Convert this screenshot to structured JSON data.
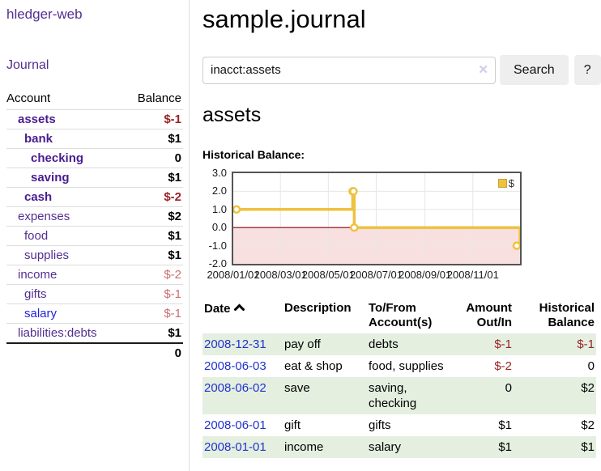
{
  "sidebar": {
    "app_title": "hledger-web",
    "journal_link": "Journal",
    "accounts_table": {
      "account_header": "Account",
      "balance_header": "Balance",
      "rows": [
        {
          "name": "assets",
          "depth": 1,
          "balance": "$-1",
          "matched": true
        },
        {
          "name": "bank",
          "depth": 2,
          "balance": "$1",
          "matched": true
        },
        {
          "name": "checking",
          "depth": 3,
          "balance": "0",
          "matched": true
        },
        {
          "name": "saving",
          "depth": 3,
          "balance": "$1",
          "matched": true
        },
        {
          "name": "cash",
          "depth": 2,
          "balance": "$-2",
          "matched": true
        },
        {
          "name": "expenses",
          "depth": 1,
          "balance": "$2",
          "matched": false
        },
        {
          "name": "food",
          "depth": 2,
          "balance": "$1",
          "matched": false
        },
        {
          "name": "supplies",
          "depth": 2,
          "balance": "$1",
          "matched": false
        },
        {
          "name": "income",
          "depth": 1,
          "balance": "$-2",
          "matched": false
        },
        {
          "name": "gifts",
          "depth": 2,
          "balance": "$-1",
          "matched": false
        },
        {
          "name": "salary",
          "depth": 2,
          "balance": "$-1",
          "matched": false,
          "link_state": "unvisited"
        },
        {
          "name": "liabilities:debts",
          "depth": 1,
          "balance": "$1",
          "matched": false
        }
      ],
      "total": "0"
    }
  },
  "header": {
    "title": "sample.journal"
  },
  "search": {
    "query": "inacct:assets",
    "clear_icon": "✕",
    "search_label": "Search",
    "help_label": "?"
  },
  "account_page": {
    "heading": "assets",
    "chart_label": "Historical Balance:"
  },
  "chart_data": {
    "type": "line",
    "title": "Historical Balance:",
    "step": true,
    "series": [
      {
        "name": "$",
        "color": "#edc240",
        "points": [
          {
            "date": "2008/01/01",
            "day": 0,
            "value": 1
          },
          {
            "date": "2008/06/01",
            "day": 152,
            "value": 2
          },
          {
            "date": "2008/06/02",
            "day": 153,
            "value": 2
          },
          {
            "date": "2008/06/03",
            "day": 154,
            "value": 0
          },
          {
            "date": "2008/12/31",
            "day": 365,
            "value": -1
          }
        ]
      }
    ],
    "xticks": [
      {
        "label": "2008/01/01",
        "day": 0
      },
      {
        "label": "2008/03/01",
        "day": 60
      },
      {
        "label": "2008/05/01",
        "day": 121
      },
      {
        "label": "2008/07/01",
        "day": 182
      },
      {
        "label": "2008/09/01",
        "day": 244
      },
      {
        "label": "2008/11/01",
        "day": 305
      }
    ],
    "yticks": [
      3.0,
      2.0,
      1.0,
      0.0,
      -1.0,
      -2.0
    ],
    "xlim_days": [
      0,
      365
    ],
    "ylim": [
      -2,
      3
    ],
    "grid": true,
    "grid_color": "#e6e6e6",
    "border_color": "#545454",
    "negative_region_fill": "#f9e0e0",
    "zero_line_color": "#8b0000",
    "legend": {
      "position": "top-right",
      "label": "$",
      "swatch_color": "#edc240"
    }
  },
  "transactions": {
    "headers": {
      "date": "Date",
      "description": "Description",
      "accounts_line1": "To/From",
      "accounts_line2": "Account(s)",
      "amount_line1": "Amount",
      "amount_line2": "Out/In",
      "balance_line1": "Historical",
      "balance_line2": "Balance"
    },
    "rows": [
      {
        "date": "2008-12-31",
        "description": "pay off",
        "accounts": "debts",
        "amount": "$-1",
        "balance": "$-1"
      },
      {
        "date": "2008-06-03",
        "description": "eat & shop",
        "accounts": "food, supplies",
        "amount": "$-2",
        "balance": "0"
      },
      {
        "date": "2008-06-02",
        "description": "save",
        "accounts": "saving, checking",
        "amount": "0",
        "balance": "$2"
      },
      {
        "date": "2008-06-01",
        "description": "gift",
        "accounts": "gifts",
        "amount": "$1",
        "balance": "$2"
      },
      {
        "date": "2008-01-01",
        "description": "income",
        "accounts": "salary",
        "amount": "$1",
        "balance": "$1"
      }
    ]
  }
}
